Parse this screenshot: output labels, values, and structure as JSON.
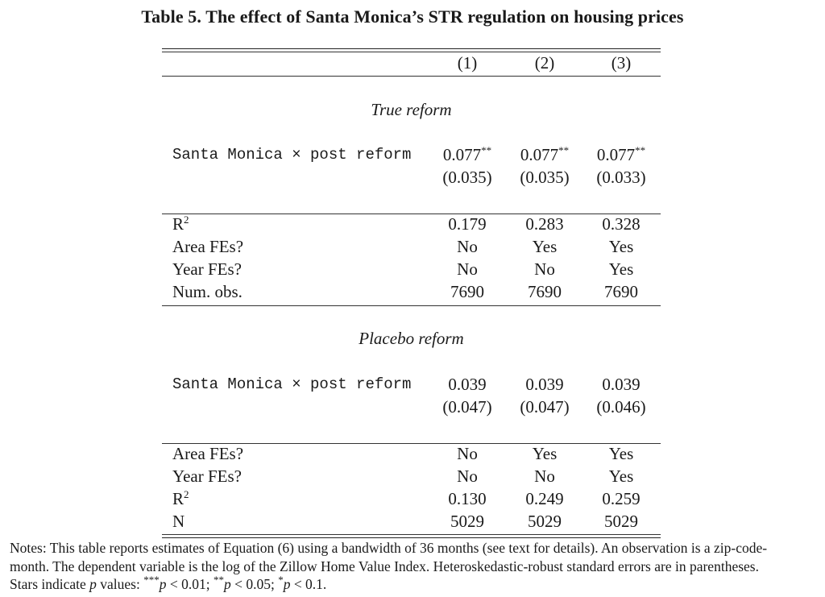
{
  "title": "Table 5. The effect of Santa Monica’s STR regulation on housing prices",
  "columns": [
    "(1)",
    "(2)",
    "(3)"
  ],
  "panels": [
    {
      "heading": "True reform",
      "coef": {
        "label": "Santa Monica × post reform",
        "estimates": [
          "0.077",
          "0.077",
          "0.077"
        ],
        "stars": [
          "**",
          "**",
          "**"
        ],
        "std_errors": [
          "(0.035)",
          "(0.035)",
          "(0.033)"
        ]
      },
      "stats": [
        {
          "label_base": "R",
          "label_sup": "2",
          "values": [
            "0.179",
            "0.283",
            "0.328"
          ]
        },
        {
          "label_base": "Area FEs?",
          "label_sup": "",
          "values": [
            "No",
            "Yes",
            "Yes"
          ]
        },
        {
          "label_base": "Year FEs?",
          "label_sup": "",
          "values": [
            "No",
            "No",
            "Yes"
          ]
        },
        {
          "label_base": "Num. obs.",
          "label_sup": "",
          "values": [
            "7690",
            "7690",
            "7690"
          ]
        }
      ]
    },
    {
      "heading": "Placebo reform",
      "coef": {
        "label": "Santa Monica × post reform",
        "estimates": [
          "0.039",
          "0.039",
          "0.039"
        ],
        "stars": [
          "",
          "",
          ""
        ],
        "std_errors": [
          "(0.047)",
          "(0.047)",
          "(0.046)"
        ]
      },
      "stats": [
        {
          "label_base": "Area FEs?",
          "label_sup": "",
          "values": [
            "No",
            "Yes",
            "Yes"
          ]
        },
        {
          "label_base": "Year FEs?",
          "label_sup": "",
          "values": [
            "No",
            "No",
            "Yes"
          ]
        },
        {
          "label_base": "R",
          "label_sup": "2",
          "values": [
            "0.130",
            "0.249",
            "0.259"
          ]
        },
        {
          "label_base": "N",
          "label_sup": "",
          "values": [
            "5029",
            "5029",
            "5029"
          ]
        }
      ]
    }
  ],
  "notes": {
    "line1": "Notes: This table reports estimates of Equation (6) using a bandwidth of 36 months (see text for details). An observation is a zip-code-",
    "line2": "month. The dependent variable is the log of the Zillow Home Value Index. Heteroskedastic-robust standard errors are in parentheses.",
    "line3_prefix": "Stars indicate ",
    "line3_p": "p",
    "line3_mid": " values: ",
    "stars_legend": [
      {
        "stars": "***",
        "p": "p",
        "cond": " < 0.01; "
      },
      {
        "stars": "**",
        "p": "p",
        "cond": " < 0.05; "
      },
      {
        "stars": "*",
        "p": "p",
        "cond": " < 0.1."
      }
    ]
  }
}
